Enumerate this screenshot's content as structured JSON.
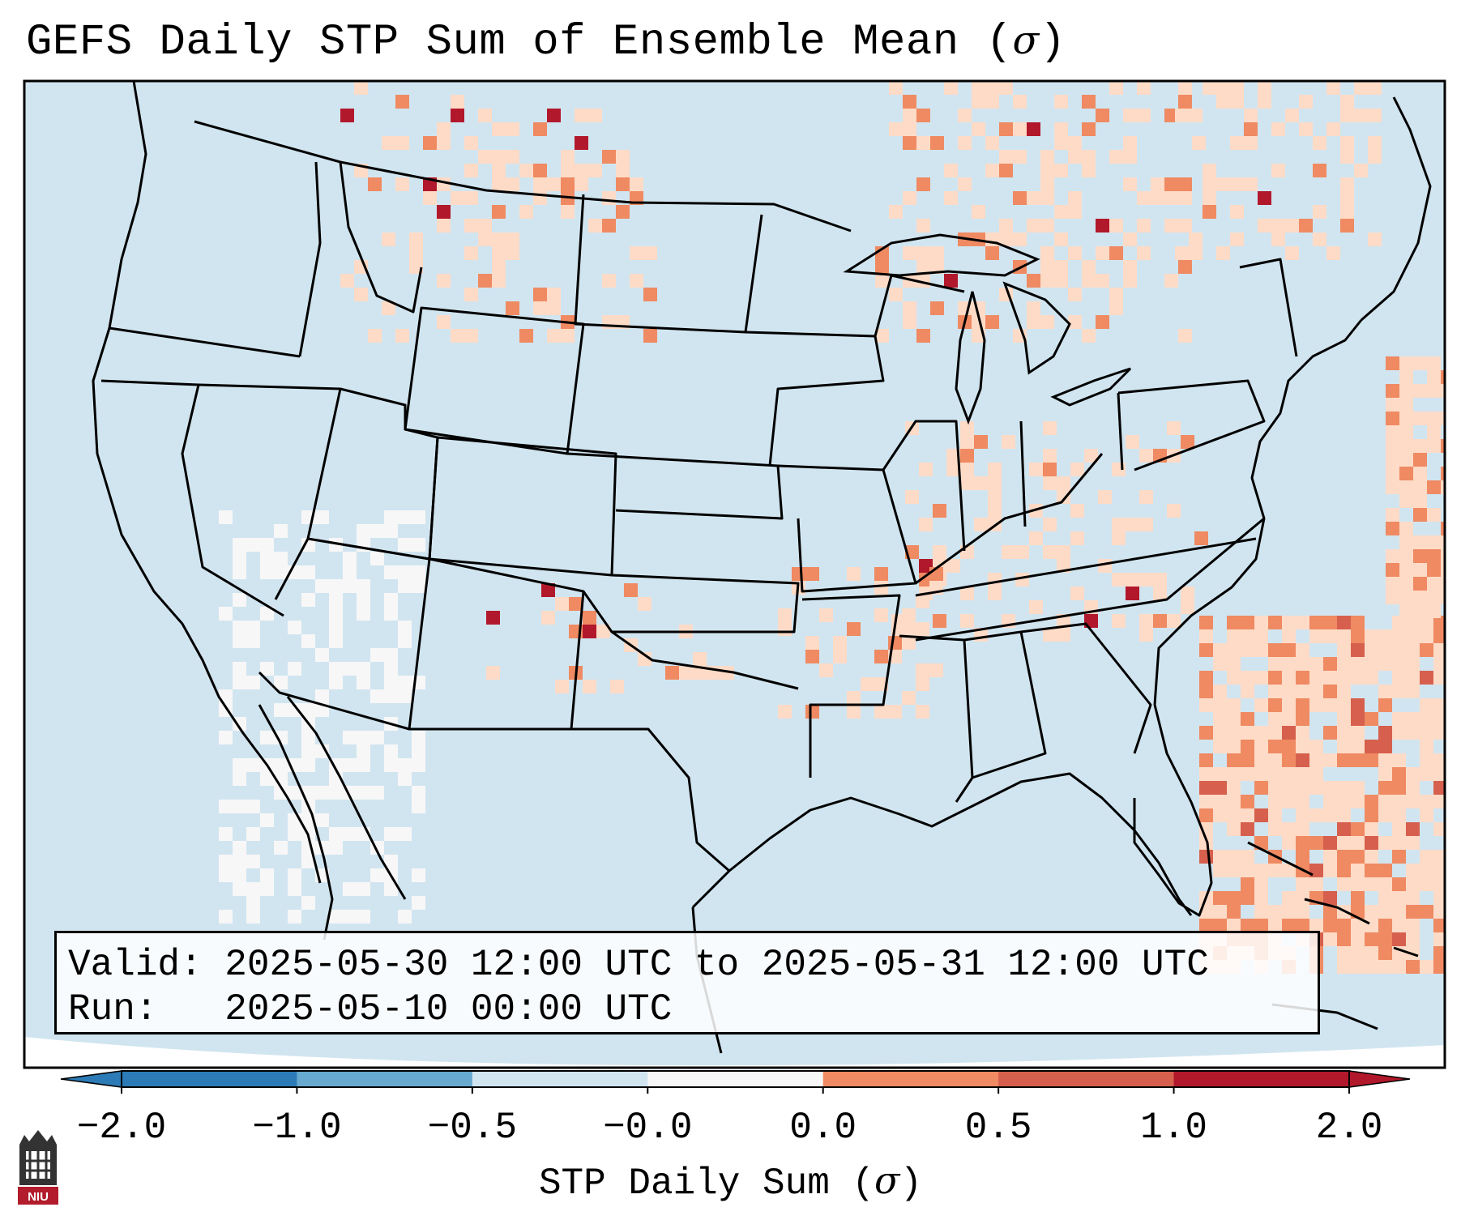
{
  "title": "GEFS Daily STP Sum of Ensemble Mean (",
  "title_symbol": "σ",
  "title_end": ")",
  "info": {
    "valid_label": "Valid:",
    "valid_value": "2025-05-30 12:00 UTC to 2025-05-31 12:00 UTC",
    "run_label": "Run:",
    "run_value": "2025-05-10 00:00 UTC"
  },
  "colorbar": {
    "ticks": [
      "−2.0",
      "−1.0",
      "−0.5",
      "−0.0",
      "0.0",
      "0.5",
      "1.0",
      "2.0"
    ],
    "colors": [
      "#2c7bb6",
      "#67a9cf",
      "#d1e5f0",
      "#f7f7f7",
      "#fddbc7",
      "#ef8a62",
      "#d6604d",
      "#b2182b"
    ],
    "label": "STP Daily Sum (",
    "label_symbol": "σ",
    "label_end": ")"
  },
  "colors": {
    "background": "#d1e5f0",
    "ocean": "#d1e5f0",
    "border": "#000000"
  },
  "logo": {
    "text": "NIU",
    "name": "niu-logo"
  }
}
